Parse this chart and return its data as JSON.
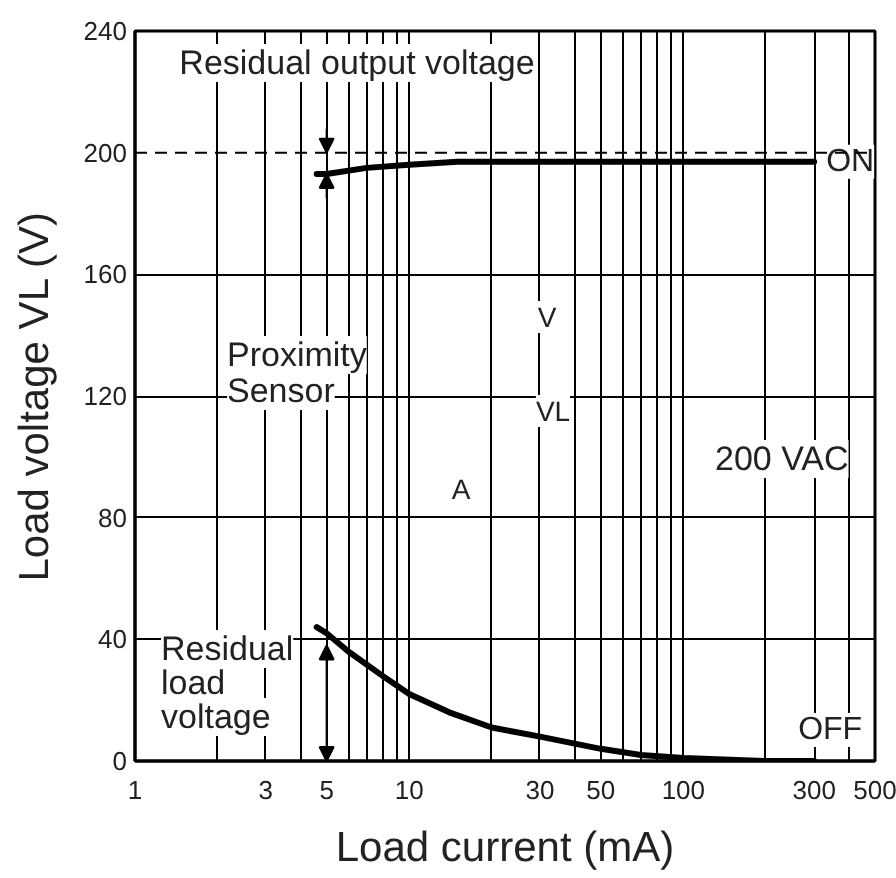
{
  "chart_data": {
    "type": "line",
    "xlabel": "Load current (mA)",
    "ylabel": "Load voltage VL (V)",
    "xlim": [
      1,
      500
    ],
    "ylim": [
      0,
      240
    ],
    "xticks": [
      1,
      3,
      5,
      10,
      30,
      50,
      100,
      300,
      500
    ],
    "yticks": [
      0,
      40,
      80,
      120,
      160,
      200,
      240
    ],
    "log": "x",
    "grid": true,
    "series": [
      {
        "name": "ON",
        "color": "#000000",
        "x": [
          4.6,
          5,
          7,
          10,
          15,
          30,
          100,
          300
        ],
        "values": [
          193,
          193,
          195,
          196,
          197,
          197,
          197,
          197
        ]
      },
      {
        "name": "OFF",
        "color": "#000000",
        "x": [
          4.6,
          5,
          6,
          8,
          10,
          14,
          20,
          30,
          50,
          70,
          100,
          200,
          300
        ],
        "values": [
          44,
          42,
          36,
          28,
          22,
          16,
          11,
          8,
          4,
          2,
          1,
          0,
          0
        ]
      }
    ],
    "ref_lines": [
      {
        "axis": "y",
        "value": 200,
        "line_style": "dashed",
        "color": "#000000"
      }
    ],
    "annotations": [
      {
        "text": "Residual output voltage",
        "x": 5,
        "y": 193
      },
      {
        "text": "Residual load voltage",
        "x": 5,
        "y": 38
      },
      "Proximity Sensor",
      "V",
      "A",
      "VL",
      "200 VAC"
    ]
  }
}
